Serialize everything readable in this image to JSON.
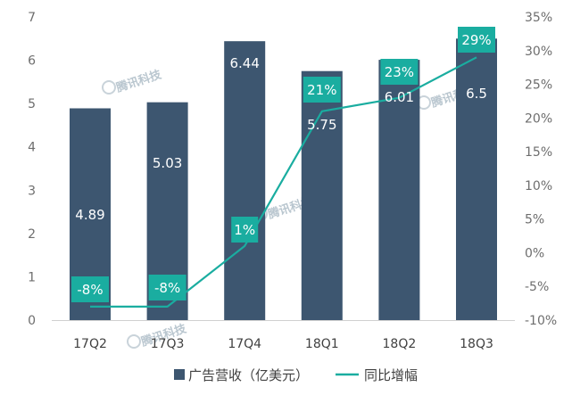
{
  "watermark": "腾讯科技",
  "chart_data": {
    "type": "bar+line",
    "categories": [
      "17Q2",
      "17Q3",
      "17Q4",
      "18Q1",
      "18Q2",
      "18Q3"
    ],
    "series": [
      {
        "name": "广告营收（亿美元）",
        "type": "bar",
        "axis": "left",
        "values": [
          4.89,
          5.03,
          6.44,
          5.75,
          6.01,
          6.5
        ],
        "labels": [
          "4.89",
          "5.03",
          "6.44",
          "5.75",
          "6.01",
          "6.5"
        ],
        "color": "#3d5670"
      },
      {
        "name": "同比增幅",
        "type": "line",
        "axis": "right",
        "values": [
          -8,
          -8,
          1,
          21,
          23,
          29
        ],
        "labels": [
          "-8%",
          "-8%",
          "1%",
          "21%",
          "23%",
          "29%"
        ],
        "color": "#1aada0"
      }
    ],
    "y_left": {
      "min": 0,
      "max": 7,
      "ticks": [
        "0",
        "1",
        "2",
        "3",
        "4",
        "5",
        "6",
        "7"
      ]
    },
    "y_right": {
      "min": -10,
      "max": 35,
      "ticks": [
        "-10%",
        "-5%",
        "0%",
        "5%",
        "10%",
        "15%",
        "20%",
        "25%",
        "30%",
        "35%"
      ]
    },
    "legend": [
      "广告营收（亿美元）",
      "同比增幅"
    ],
    "legend_position": "bottom",
    "grid": false
  }
}
